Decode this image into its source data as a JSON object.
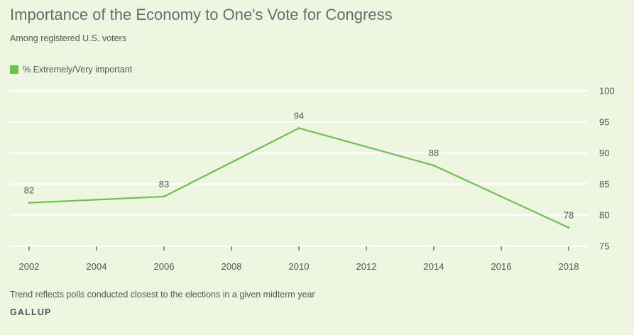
{
  "title": "Importance of the Economy to One's Vote for Congress",
  "subtitle": "Among registered U.S. voters",
  "footnote": "Trend reflects polls conducted closest to the elections in a given midterm year",
  "source": "GALLUP",
  "colors": {
    "series": "#6cc24a",
    "grid": "#ffffff",
    "background": "#eef5e1"
  },
  "chart_data": {
    "type": "line",
    "title": "Importance of the Economy to One's Vote for Congress",
    "xlabel": "",
    "ylabel": "",
    "legend": "top-left",
    "grid": true,
    "xlim": [
      2002,
      2018
    ],
    "ylim": [
      75,
      100
    ],
    "x_ticks": [
      2002,
      2004,
      2006,
      2008,
      2010,
      2012,
      2014,
      2016,
      2018
    ],
    "y_ticks": [
      75,
      80,
      85,
      90,
      95,
      100
    ],
    "series": [
      {
        "name": "% Extremely/Very important",
        "x": [
          2002,
          2006,
          2010,
          2014,
          2018
        ],
        "values": [
          82,
          83,
          94,
          88,
          78
        ]
      }
    ]
  }
}
